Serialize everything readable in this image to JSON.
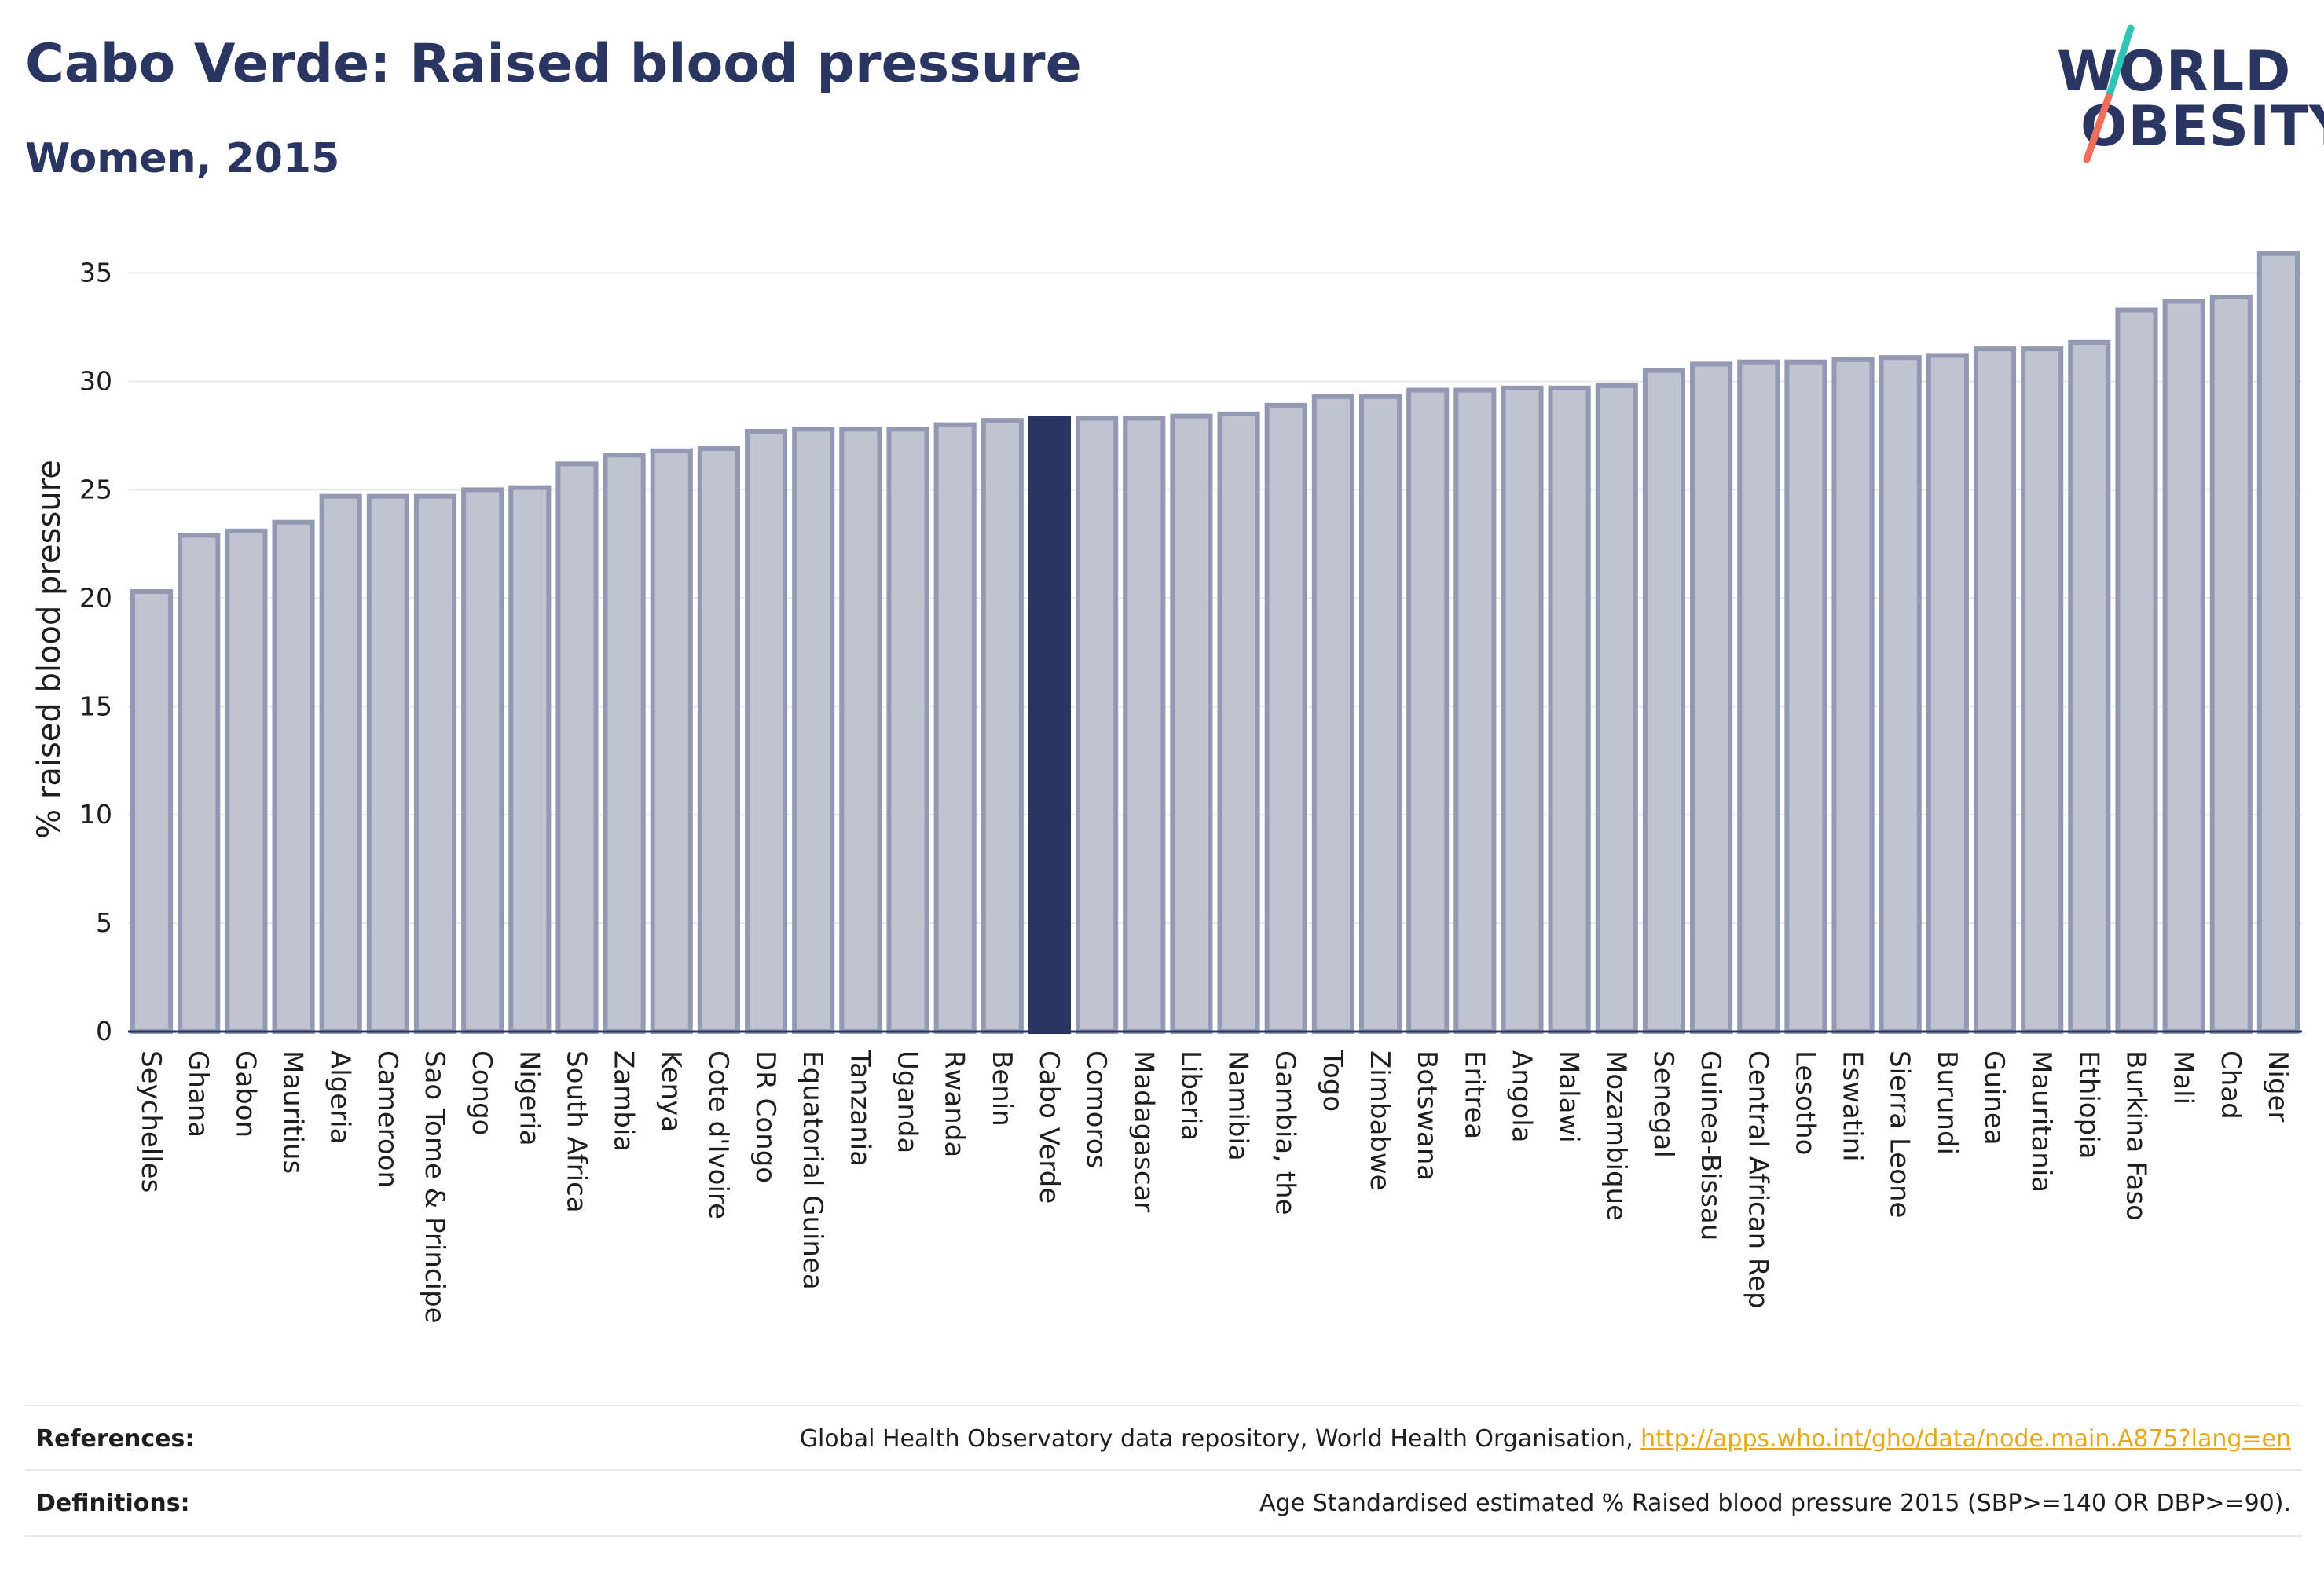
{
  "header": {
    "title": "Cabo Verde: Raised blood pressure",
    "subtitle": "Women, 2015"
  },
  "logo": {
    "line1": "WORLD",
    "line2": "OBESITY"
  },
  "colors": {
    "bar_default": "#c0c3d0",
    "bar_default_border": "#9399b3",
    "bar_highlight": "#2b3561",
    "text": "#2b3561",
    "link": "#e6a817",
    "logo_slash_top": "#2ec4b6",
    "logo_slash_bottom": "#ef6f5a"
  },
  "chart_data": {
    "type": "bar",
    "ylabel": "% raised blood pressure",
    "xlabel": "",
    "ylim": [
      0,
      36
    ],
    "yticks": [
      0,
      5,
      10,
      15,
      20,
      25,
      30,
      35
    ],
    "grid": true,
    "highlight": "Cabo Verde",
    "categories": [
      "Seychelles",
      "Ghana",
      "Gabon",
      "Mauritius",
      "Algeria",
      "Cameroon",
      "Sao Tome & Principe",
      "Congo",
      "Nigeria",
      "South Africa",
      "Zambia",
      "Kenya",
      "Cote d'Ivoire",
      "DR Congo",
      "Equatorial Guinea",
      "Tanzania",
      "Uganda",
      "Rwanda",
      "Benin",
      "Cabo Verde",
      "Comoros",
      "Madagascar",
      "Liberia",
      "Namibia",
      "Gambia, the",
      "Togo",
      "Zimbabwe",
      "Botswana",
      "Eritrea",
      "Angola",
      "Malawi",
      "Mozambique",
      "Senegal",
      "Guinea-Bissau",
      "Central African Rep",
      "Lesotho",
      "Eswatini",
      "Sierra Leone",
      "Burundi",
      "Guinea",
      "Mauritania",
      "Ethiopia",
      "Burkina Faso",
      "Mali",
      "Chad",
      "Niger"
    ],
    "values": [
      20.3,
      22.9,
      23.1,
      23.5,
      24.7,
      24.7,
      24.7,
      25.0,
      25.1,
      26.2,
      26.6,
      26.8,
      26.9,
      27.7,
      27.8,
      27.8,
      27.8,
      28.0,
      28.2,
      28.3,
      28.3,
      28.3,
      28.4,
      28.5,
      28.9,
      29.3,
      29.3,
      29.6,
      29.6,
      29.7,
      29.7,
      29.8,
      30.5,
      30.8,
      30.9,
      30.9,
      31.0,
      31.1,
      31.2,
      31.5,
      31.5,
      31.8,
      33.3,
      33.7,
      33.9,
      35.9
    ]
  },
  "footer": {
    "references_label": "References:",
    "references_text": "Global Health Observatory data repository, World Health Organisation, ",
    "references_link": "http://apps.who.int/gho/data/node.main.A875?lang=en",
    "definitions_label": "Definitions:",
    "definitions_text": "Age Standardised estimated % Raised blood pressure 2015 (SBP>=140 OR DBP>=90)."
  }
}
